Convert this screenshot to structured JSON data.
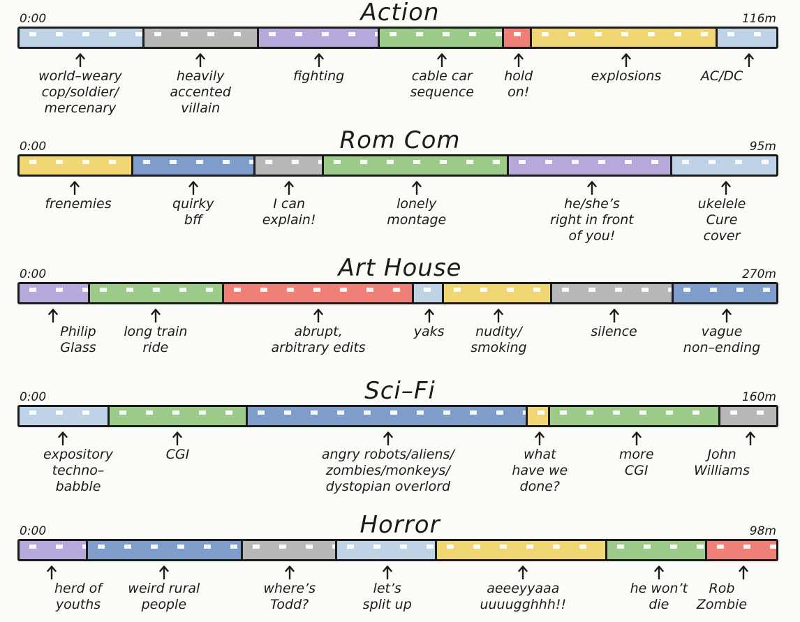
{
  "colors": {
    "blue_light": "#bfd3e6",
    "gray": "#b8b8b8",
    "purple": "#b7a8dc",
    "green": "#9ccb8a",
    "red": "#f07f78",
    "yellow": "#f1d774",
    "blue_dark": "#7f9dcb",
    "outline": "#1b1b1b"
  },
  "icons": {
    "arrow": "up-arrow-icon"
  },
  "genres": [
    {
      "title": "Action",
      "start": "0:00",
      "end": "116m",
      "segments": [
        {
          "color": "blue_light",
          "from": 0,
          "to": 16.5,
          "label": [
            "world–weary",
            "cop/soldier/",
            "mercenary"
          ]
        },
        {
          "color": "gray",
          "from": 16.5,
          "to": 31.6,
          "label": [
            "heavily",
            "accented",
            "villain"
          ]
        },
        {
          "color": "purple",
          "from": 31.6,
          "to": 47.6,
          "label": [
            "fighting"
          ]
        },
        {
          "color": "green",
          "from": 47.6,
          "to": 64.0,
          "label": [
            "cable car",
            "sequence"
          ]
        },
        {
          "color": "red",
          "from": 64.0,
          "to": 67.7,
          "label": [
            "hold",
            "on!"
          ]
        },
        {
          "color": "yellow",
          "from": 67.7,
          "to": 92.3,
          "label": [
            "explosions"
          ]
        },
        {
          "color": "blue_light",
          "from": 92.3,
          "to": 100,
          "label": [
            "AC/DC"
          ]
        }
      ]
    },
    {
      "title": "Rom Com",
      "start": "0:00",
      "end": "95m",
      "segments": [
        {
          "color": "yellow",
          "from": 0,
          "to": 15.0,
          "label": [
            "frenemies"
          ]
        },
        {
          "color": "blue_dark",
          "from": 15.0,
          "to": 31.2,
          "label": [
            "quirky",
            "bff"
          ]
        },
        {
          "color": "gray",
          "from": 31.2,
          "to": 40.2,
          "label": [
            "I can",
            "explain!"
          ]
        },
        {
          "color": "green",
          "from": 40.2,
          "to": 64.7,
          "label": [
            "lonely",
            "montage"
          ]
        },
        {
          "color": "purple",
          "from": 64.7,
          "to": 86.3,
          "label": [
            "he/she’s",
            "right in front",
            "of you!"
          ]
        },
        {
          "color": "blue_light",
          "from": 86.3,
          "to": 100,
          "label": [
            "ukelele",
            "Cure",
            "cover"
          ]
        }
      ]
    },
    {
      "title": "Art House",
      "start": "0:00",
      "end": "270m",
      "segments": [
        {
          "color": "purple",
          "from": 0,
          "to": 9.3,
          "label": [
            "Philip",
            "Glass"
          ]
        },
        {
          "color": "green",
          "from": 9.3,
          "to": 27.0,
          "label": [
            "long train",
            "ride"
          ]
        },
        {
          "color": "red",
          "from": 27.0,
          "to": 52.1,
          "label": [
            "abrupt,",
            "arbitrary edits"
          ]
        },
        {
          "color": "blue_light",
          "from": 52.1,
          "to": 56.1,
          "label": [
            "yaks"
          ]
        },
        {
          "color": "yellow",
          "from": 56.1,
          "to": 70.4,
          "label": [
            "nudity/",
            "smoking"
          ]
        },
        {
          "color": "gray",
          "from": 70.4,
          "to": 86.4,
          "label": [
            "silence"
          ]
        },
        {
          "color": "blue_dark",
          "from": 86.4,
          "to": 100,
          "label": [
            "vague",
            "non–ending"
          ]
        }
      ]
    },
    {
      "title": "Sci–Fi",
      "start": "0:00",
      "end": "160m",
      "segments": [
        {
          "color": "blue_light",
          "from": 0,
          "to": 11.9,
          "label": [
            "expository",
            "techno–",
            "babble"
          ]
        },
        {
          "color": "green",
          "from": 11.9,
          "to": 30.2,
          "label": [
            "CGI"
          ]
        },
        {
          "color": "blue_dark",
          "from": 30.2,
          "to": 67.2,
          "label": [
            "angry robots/aliens/",
            "zombies/monkeys/",
            "dystopian overlord"
          ]
        },
        {
          "color": "yellow",
          "from": 67.2,
          "to": 70.1,
          "label": [
            "what",
            "have we",
            "done?"
          ]
        },
        {
          "color": "green",
          "from": 70.1,
          "to": 92.6,
          "label": [
            "more",
            "CGI"
          ]
        },
        {
          "color": "gray",
          "from": 92.6,
          "to": 100,
          "label": [
            "John",
            "Williams"
          ]
        }
      ]
    },
    {
      "title": "Horror",
      "start": "0:00",
      "end": "98m",
      "segments": [
        {
          "color": "purple",
          "from": 0,
          "to": 9.0,
          "label": [
            "herd of",
            "youths"
          ]
        },
        {
          "color": "blue_dark",
          "from": 9.0,
          "to": 29.5,
          "label": [
            "weird rural",
            "people"
          ]
        },
        {
          "color": "gray",
          "from": 29.5,
          "to": 42.0,
          "label": [
            "where’s",
            "Todd?"
          ]
        },
        {
          "color": "blue_light",
          "from": 42.0,
          "to": 55.2,
          "label": [
            "let’s",
            "split up"
          ]
        },
        {
          "color": "yellow",
          "from": 55.2,
          "to": 77.7,
          "label": [
            "aeeeyyaaa",
            "uuuugghhh!!"
          ]
        },
        {
          "color": "green",
          "from": 77.7,
          "to": 90.9,
          "label": [
            "he won’t",
            "die"
          ]
        },
        {
          "color": "red",
          "from": 90.9,
          "to": 100,
          "label": [
            "Rob",
            "Zombie"
          ]
        }
      ]
    }
  ]
}
